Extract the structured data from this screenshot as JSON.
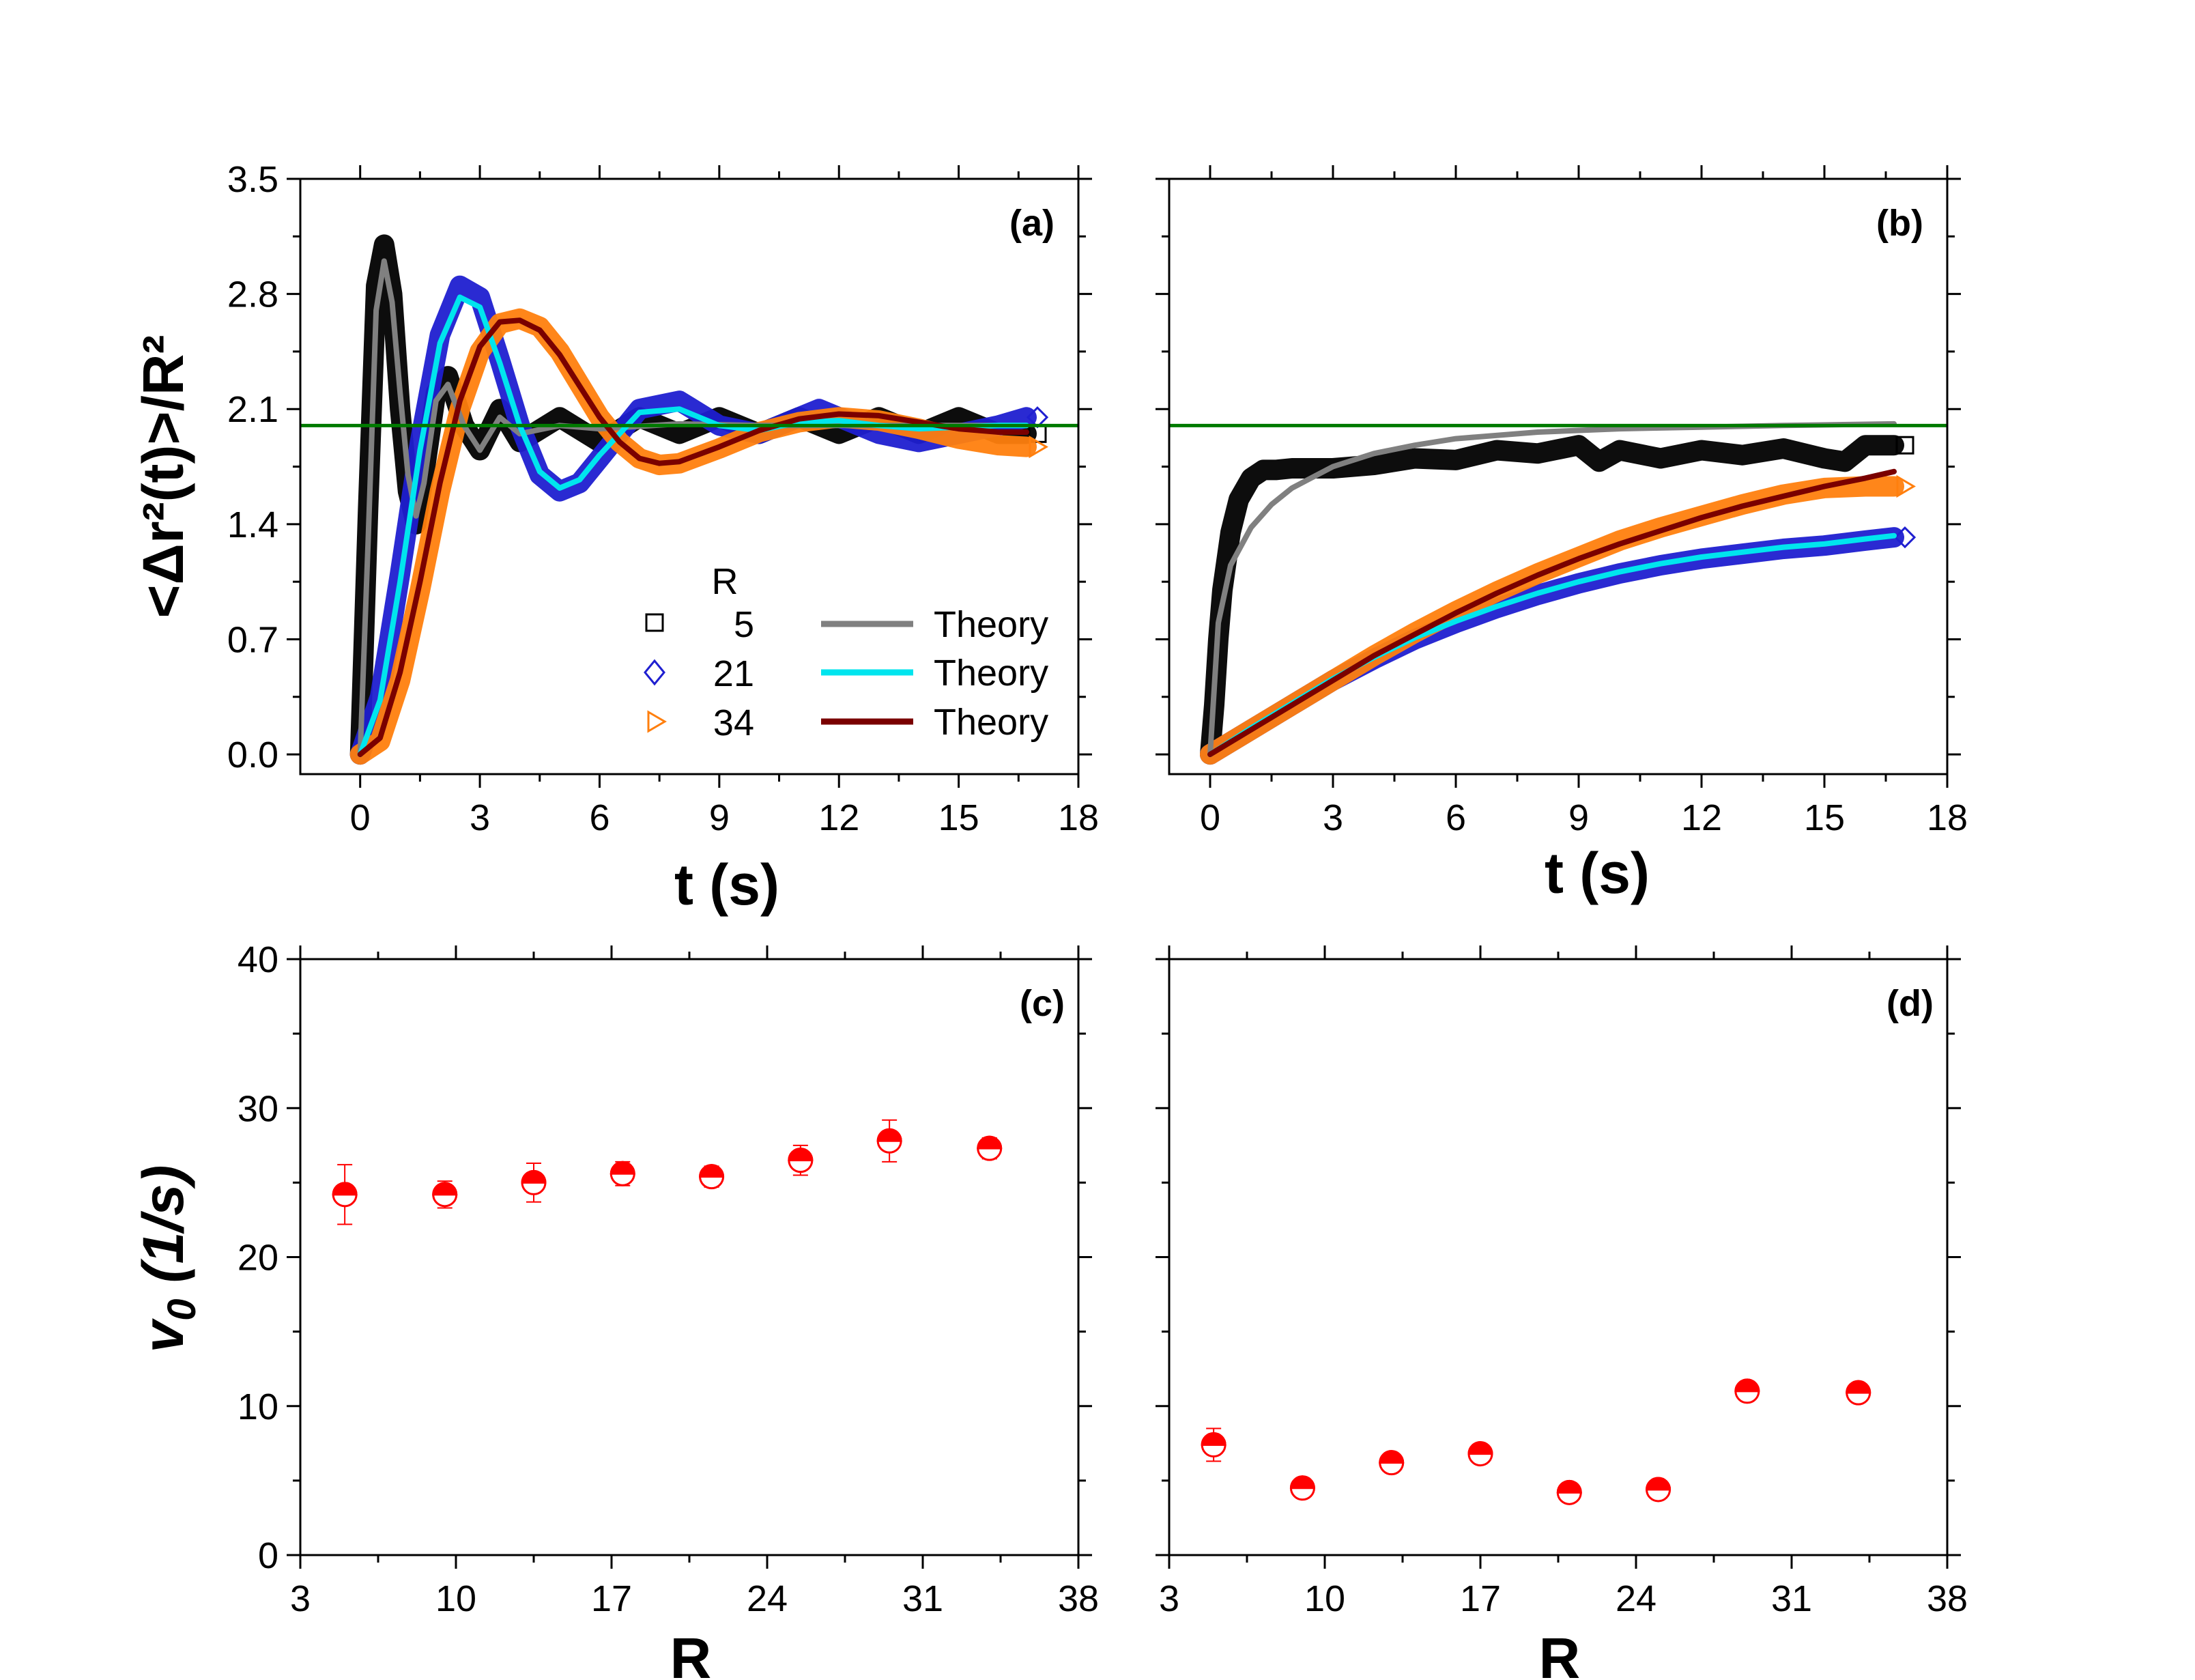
{
  "figure": {
    "colors": {
      "r5": "#000000",
      "r5_theory": "#808080",
      "r21": "#1f1fd0",
      "r21_theory": "#00e5ee",
      "r34": "#ff7f0e",
      "r34_theory": "#7a0000",
      "reference": "#007a00",
      "v0_points": "#ff0000"
    },
    "legend": {
      "header": "R",
      "entries": [
        {
          "label": "5",
          "marker": "square",
          "color": "#000000"
        },
        {
          "label": "21",
          "marker": "diamond",
          "color": "#1f1fd0"
        },
        {
          "label": "34",
          "marker": "triangle-right",
          "color": "#ff7f0e"
        }
      ],
      "theory": [
        {
          "label": "Theory",
          "color": "#808080"
        },
        {
          "label": "Theory",
          "color": "#00e5ee"
        },
        {
          "label": "Theory",
          "color": "#7a0000"
        }
      ]
    }
  },
  "chart_data": [
    {
      "panel": "(a)",
      "type": "line",
      "ylabel": "<Δr²(t)>/R²",
      "xlabel": "t (s)",
      "xlim": [
        -1.5,
        18
      ],
      "ylim": [
        -0.12,
        3.5
      ],
      "xticks": [
        "0",
        "3",
        "6",
        "9",
        "12",
        "15",
        "18"
      ],
      "yticks": [
        "0.0",
        "0.7",
        "1.4",
        "2.1",
        "2.8",
        "3.5"
      ],
      "reference_line": 2.0,
      "series": [
        {
          "name": "5",
          "kind": "data",
          "marker": "square",
          "x": [
            0,
            0.2,
            0.4,
            0.6,
            0.8,
            1.0,
            1.2,
            1.4,
            1.6,
            1.9,
            2.2,
            2.6,
            3.0,
            3.5,
            4.0,
            5.0,
            6.0,
            7.0,
            8.0,
            9.0,
            10.0,
            11.0,
            12.0,
            13.0,
            14.0,
            15.0,
            16.0,
            16.7
          ],
          "y": [
            0.0,
            1.5,
            2.85,
            3.1,
            2.8,
            2.1,
            1.6,
            1.4,
            1.7,
            2.2,
            2.3,
            2.0,
            1.85,
            2.1,
            1.9,
            2.05,
            1.9,
            2.05,
            1.95,
            2.05,
            1.95,
            2.05,
            1.95,
            2.05,
            1.95,
            2.05,
            1.95,
            1.95
          ]
        },
        {
          "name": "Theory",
          "kind": "theory",
          "x": [
            0,
            0.2,
            0.4,
            0.6,
            0.8,
            1.0,
            1.2,
            1.4,
            1.6,
            1.9,
            2.2,
            2.6,
            3.0,
            3.5,
            4.0,
            5.0,
            6.0,
            8.0,
            10.0,
            16.7
          ],
          "y": [
            0.0,
            1.3,
            2.7,
            3.0,
            2.75,
            2.2,
            1.7,
            1.45,
            1.65,
            2.15,
            2.25,
            2.0,
            1.85,
            2.05,
            1.95,
            2.0,
            1.98,
            2.01,
            2.0,
            2.0
          ]
        },
        {
          "name": "21",
          "kind": "data",
          "marker": "diamond",
          "x": [
            0,
            0.5,
            1.0,
            1.5,
            2.0,
            2.5,
            3.0,
            3.5,
            4.0,
            4.5,
            5.0,
            5.5,
            6.0,
            7.0,
            8.0,
            9.0,
            10.0,
            11.0,
            11.5,
            12.0,
            13.0,
            14.0,
            15.0,
            16.0,
            16.7
          ],
          "y": [
            0.0,
            0.35,
            1.1,
            1.9,
            2.55,
            2.85,
            2.78,
            2.4,
            2.0,
            1.7,
            1.6,
            1.65,
            1.8,
            2.1,
            2.15,
            2.0,
            1.95,
            2.05,
            2.1,
            2.05,
            1.95,
            1.9,
            1.95,
            2.0,
            2.05
          ]
        },
        {
          "name": "Theory",
          "kind": "theory",
          "x": [
            0,
            0.5,
            1.0,
            1.5,
            2.0,
            2.5,
            3.0,
            3.5,
            4.0,
            4.5,
            5.0,
            5.5,
            6.0,
            7.0,
            8.0,
            9.0,
            10.0,
            11.0,
            12.0,
            13.0,
            14.0,
            15.0,
            16.0,
            16.7
          ],
          "y": [
            0.0,
            0.33,
            1.05,
            1.85,
            2.5,
            2.78,
            2.72,
            2.38,
            2.0,
            1.72,
            1.62,
            1.67,
            1.82,
            2.08,
            2.1,
            2.0,
            1.97,
            2.02,
            2.03,
            2.0,
            1.98,
            1.99,
            2.0,
            2.0
          ]
        },
        {
          "name": "34",
          "kind": "data",
          "marker": "triangle-right",
          "x": [
            0,
            0.5,
            1.0,
            1.5,
            2.0,
            2.5,
            3.0,
            3.5,
            4.0,
            4.5,
            5.0,
            5.5,
            6.0,
            6.5,
            7.0,
            7.5,
            8.0,
            9.0,
            10.0,
            11.0,
            12.0,
            13.0,
            14.0,
            15.0,
            16.0,
            16.7
          ],
          "y": [
            0.0,
            0.08,
            0.45,
            1.0,
            1.6,
            2.1,
            2.45,
            2.62,
            2.65,
            2.6,
            2.45,
            2.25,
            2.05,
            1.9,
            1.8,
            1.76,
            1.77,
            1.86,
            1.96,
            2.02,
            2.05,
            2.03,
            1.98,
            1.92,
            1.88,
            1.87
          ]
        },
        {
          "name": "Theory",
          "kind": "theory",
          "x": [
            0,
            0.5,
            1.0,
            1.5,
            2.0,
            2.5,
            3.0,
            3.5,
            4.0,
            4.5,
            5.0,
            5.5,
            6.0,
            6.5,
            7.0,
            7.5,
            8.0,
            9.0,
            10.0,
            11.0,
            12.0,
            13.0,
            14.0,
            15.0,
            16.0,
            16.7
          ],
          "y": [
            0.0,
            0.1,
            0.5,
            1.05,
            1.65,
            2.15,
            2.48,
            2.63,
            2.64,
            2.58,
            2.43,
            2.24,
            2.05,
            1.9,
            1.8,
            1.77,
            1.78,
            1.87,
            1.97,
            2.04,
            2.07,
            2.06,
            2.02,
            1.98,
            1.96,
            1.96
          ]
        }
      ]
    },
    {
      "panel": "(b)",
      "type": "line",
      "xlabel": "t (s)",
      "xlim": [
        -1.0,
        18
      ],
      "ylim": [
        -0.12,
        3.5
      ],
      "xticks": [
        "0",
        "3",
        "6",
        "9",
        "12",
        "15",
        "18"
      ],
      "reference_line": 2.0,
      "series": [
        {
          "name": "5",
          "kind": "data",
          "marker": "square",
          "x": [
            0,
            0.1,
            0.2,
            0.3,
            0.5,
            0.7,
            1.0,
            1.3,
            1.6,
            2.0,
            3.0,
            4.0,
            5.0,
            6.0,
            7.0,
            8.0,
            9.0,
            9.5,
            10.0,
            11.0,
            12.0,
            13.0,
            14.0,
            15.0,
            15.5,
            16.0,
            16.7
          ],
          "y": [
            0.0,
            0.3,
            0.7,
            1.0,
            1.35,
            1.55,
            1.68,
            1.73,
            1.73,
            1.74,
            1.74,
            1.76,
            1.8,
            1.79,
            1.85,
            1.83,
            1.88,
            1.78,
            1.85,
            1.8,
            1.85,
            1.82,
            1.86,
            1.8,
            1.78,
            1.88,
            1.88
          ]
        },
        {
          "name": "Theory",
          "kind": "theory",
          "x": [
            0,
            0.2,
            0.5,
            1.0,
            1.5,
            2.0,
            3.0,
            4.0,
            5.0,
            6.0,
            8.0,
            10.0,
            12.0,
            14.0,
            16.7
          ],
          "y": [
            0.0,
            0.8,
            1.15,
            1.38,
            1.52,
            1.62,
            1.75,
            1.83,
            1.88,
            1.92,
            1.96,
            1.98,
            1.99,
            2.0,
            2.01
          ]
        },
        {
          "name": "21",
          "kind": "data",
          "marker": "diamond",
          "x": [
            0,
            1.0,
            2.0,
            3.0,
            4.0,
            5.0,
            6.0,
            7.0,
            8.0,
            9.0,
            10.0,
            11.0,
            12.0,
            13.0,
            14.0,
            15.0,
            16.0,
            16.7
          ],
          "y": [
            0.0,
            0.15,
            0.3,
            0.45,
            0.58,
            0.7,
            0.8,
            0.89,
            0.97,
            1.04,
            1.1,
            1.15,
            1.19,
            1.22,
            1.25,
            1.27,
            1.3,
            1.32
          ]
        },
        {
          "name": "Theory",
          "kind": "theory",
          "x": [
            0,
            1.0,
            2.0,
            3.0,
            4.0,
            5.0,
            6.0,
            7.0,
            8.0,
            9.0,
            10.0,
            11.0,
            12.0,
            13.0,
            14.0,
            15.0,
            16.0,
            16.7
          ],
          "y": [
            0.0,
            0.16,
            0.31,
            0.46,
            0.59,
            0.71,
            0.81,
            0.9,
            0.98,
            1.05,
            1.11,
            1.16,
            1.2,
            1.23,
            1.26,
            1.28,
            1.31,
            1.33
          ]
        },
        {
          "name": "34",
          "kind": "data",
          "marker": "triangle-right",
          "x": [
            0,
            1.0,
            2.0,
            3.0,
            4.0,
            5.0,
            6.0,
            7.0,
            8.0,
            9.0,
            10.0,
            11.0,
            12.0,
            13.0,
            14.0,
            15.0,
            16.0,
            16.7
          ],
          "y": [
            0.0,
            0.15,
            0.3,
            0.45,
            0.6,
            0.74,
            0.87,
            0.99,
            1.1,
            1.2,
            1.3,
            1.38,
            1.45,
            1.52,
            1.58,
            1.62,
            1.63,
            1.63
          ]
        },
        {
          "name": "Theory",
          "kind": "theory",
          "x": [
            0,
            1.0,
            2.0,
            3.0,
            4.0,
            5.0,
            6.0,
            7.0,
            8.0,
            9.0,
            10.0,
            11.0,
            12.0,
            13.0,
            14.0,
            15.0,
            16.0,
            16.7
          ],
          "y": [
            0.0,
            0.15,
            0.3,
            0.45,
            0.6,
            0.73,
            0.86,
            0.98,
            1.09,
            1.19,
            1.28,
            1.36,
            1.44,
            1.51,
            1.57,
            1.63,
            1.68,
            1.72
          ]
        }
      ]
    },
    {
      "panel": "(c)",
      "type": "scatter",
      "ylabel": "v0 (1/s)",
      "xlabel": "R",
      "xlim": [
        3,
        38
      ],
      "ylim": [
        0,
        40
      ],
      "xticks": [
        "3",
        "10",
        "17",
        "24",
        "31",
        "38"
      ],
      "yticks": [
        "0",
        "10",
        "20",
        "30",
        "40"
      ],
      "series": [
        {
          "x": [
            5,
            9.5,
            13.5,
            17.5,
            21.5,
            25.5,
            29.5,
            34
          ],
          "y": [
            24.2,
            24.2,
            25.0,
            25.6,
            25.4,
            26.5,
            27.8,
            27.3
          ],
          "err": [
            2.0,
            0.9,
            1.3,
            0.8,
            0.7,
            1.0,
            1.4,
            0.7
          ]
        }
      ]
    },
    {
      "panel": "(d)",
      "type": "scatter",
      "xlabel": "R",
      "xlim": [
        3,
        38
      ],
      "ylim": [
        0,
        40
      ],
      "xticks": [
        "3",
        "10",
        "17",
        "24",
        "31",
        "38"
      ],
      "series": [
        {
          "x": [
            5,
            9,
            13,
            17,
            21,
            25,
            29,
            34
          ],
          "y": [
            7.4,
            4.5,
            6.2,
            6.8,
            4.2,
            4.4,
            11.0,
            10.9
          ],
          "err": [
            1.1,
            0.6,
            0.5,
            0.5,
            0.5,
            0.5,
            0.5,
            0.5
          ]
        }
      ]
    }
  ]
}
